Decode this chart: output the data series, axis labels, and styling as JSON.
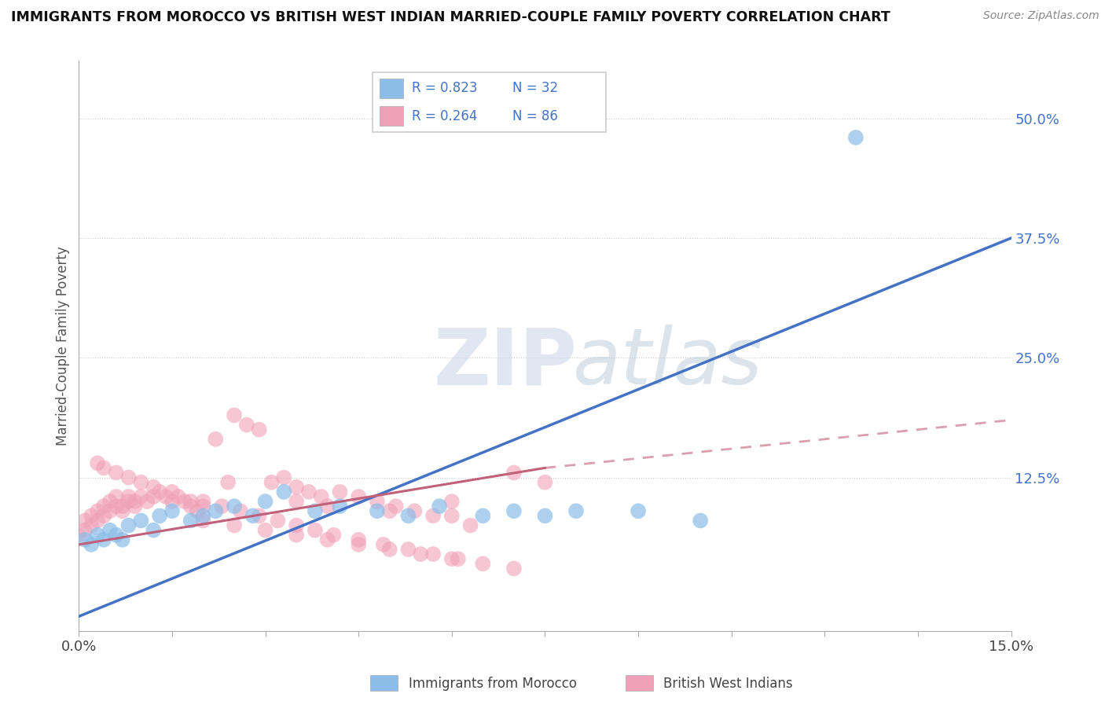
{
  "title": "IMMIGRANTS FROM MOROCCO VS BRITISH WEST INDIAN MARRIED-COUPLE FAMILY POVERTY CORRELATION CHART",
  "source": "Source: ZipAtlas.com",
  "ylabel": "Married-Couple Family Poverty",
  "xlim": [
    0.0,
    0.15
  ],
  "ylim": [
    -0.035,
    0.56
  ],
  "xtick_labels": [
    "0.0%",
    "",
    "",
    "",
    "",
    "",
    "",
    "",
    "",
    "",
    "15.0%"
  ],
  "xtick_vals": [
    0.0,
    0.015,
    0.03,
    0.045,
    0.06,
    0.075,
    0.09,
    0.105,
    0.12,
    0.135,
    0.15
  ],
  "ytick_labels": [
    "12.5%",
    "25.0%",
    "37.5%",
    "50.0%"
  ],
  "ytick_vals": [
    0.125,
    0.25,
    0.375,
    0.5
  ],
  "watermark_zip": "ZIP",
  "watermark_atlas": "atlas",
  "legend_label1": "Immigrants from Morocco",
  "legend_label2": "British West Indians",
  "color_morocco": "#8bbde8",
  "color_bwi": "#f0a0b8",
  "color_morocco_line": "#4472c4",
  "color_bwi_line": "#c0607a",
  "morocco_line": {
    "x0": 0.0,
    "x1": 0.15,
    "y0": -0.02,
    "y1": 0.375
  },
  "bwi_line_solid": {
    "x0": 0.0,
    "x1": 0.075,
    "y0": 0.055,
    "y1": 0.135
  },
  "bwi_line_dashed": {
    "x0": 0.075,
    "x1": 0.15,
    "y0": 0.135,
    "y1": 0.185
  },
  "morocco_x": [
    0.001,
    0.002,
    0.003,
    0.004,
    0.005,
    0.006,
    0.007,
    0.008,
    0.01,
    0.012,
    0.013,
    0.015,
    0.018,
    0.02,
    0.022,
    0.025,
    0.028,
    0.03,
    0.033,
    0.038,
    0.042,
    0.048,
    0.053,
    0.058,
    0.065,
    0.07,
    0.075,
    0.08,
    0.09,
    0.1,
    0.125
  ],
  "morocco_y": [
    0.06,
    0.055,
    0.065,
    0.06,
    0.07,
    0.065,
    0.06,
    0.075,
    0.08,
    0.07,
    0.085,
    0.09,
    0.08,
    0.085,
    0.09,
    0.095,
    0.085,
    0.1,
    0.11,
    0.09,
    0.095,
    0.09,
    0.085,
    0.095,
    0.085,
    0.09,
    0.085,
    0.09,
    0.09,
    0.08,
    0.48
  ],
  "bwi_x": [
    0.0,
    0.001,
    0.001,
    0.002,
    0.002,
    0.003,
    0.003,
    0.004,
    0.004,
    0.005,
    0.005,
    0.006,
    0.006,
    0.007,
    0.007,
    0.008,
    0.008,
    0.009,
    0.009,
    0.01,
    0.011,
    0.012,
    0.013,
    0.014,
    0.015,
    0.016,
    0.017,
    0.018,
    0.019,
    0.02,
    0.022,
    0.024,
    0.025,
    0.027,
    0.029,
    0.031,
    0.033,
    0.035,
    0.037,
    0.039,
    0.042,
    0.045,
    0.048,
    0.051,
    0.054,
    0.057,
    0.06,
    0.063,
    0.07,
    0.075,
    0.003,
    0.004,
    0.006,
    0.008,
    0.01,
    0.012,
    0.015,
    0.018,
    0.02,
    0.023,
    0.026,
    0.029,
    0.032,
    0.035,
    0.038,
    0.041,
    0.045,
    0.049,
    0.053,
    0.057,
    0.061,
    0.035,
    0.04,
    0.05,
    0.06,
    0.02,
    0.025,
    0.03,
    0.035,
    0.04,
    0.045,
    0.05,
    0.055,
    0.06,
    0.065,
    0.07
  ],
  "bwi_y": [
    0.065,
    0.07,
    0.08,
    0.075,
    0.085,
    0.08,
    0.09,
    0.085,
    0.095,
    0.09,
    0.1,
    0.095,
    0.105,
    0.09,
    0.095,
    0.1,
    0.105,
    0.095,
    0.1,
    0.105,
    0.1,
    0.105,
    0.11,
    0.105,
    0.1,
    0.105,
    0.1,
    0.095,
    0.09,
    0.095,
    0.165,
    0.12,
    0.19,
    0.18,
    0.175,
    0.12,
    0.125,
    0.115,
    0.11,
    0.105,
    0.11,
    0.105,
    0.1,
    0.095,
    0.09,
    0.085,
    0.1,
    0.075,
    0.13,
    0.12,
    0.14,
    0.135,
    0.13,
    0.125,
    0.12,
    0.115,
    0.11,
    0.1,
    0.1,
    0.095,
    0.09,
    0.085,
    0.08,
    0.075,
    0.07,
    0.065,
    0.06,
    0.055,
    0.05,
    0.045,
    0.04,
    0.1,
    0.095,
    0.09,
    0.085,
    0.08,
    0.075,
    0.07,
    0.065,
    0.06,
    0.055,
    0.05,
    0.045,
    0.04,
    0.035,
    0.03
  ]
}
